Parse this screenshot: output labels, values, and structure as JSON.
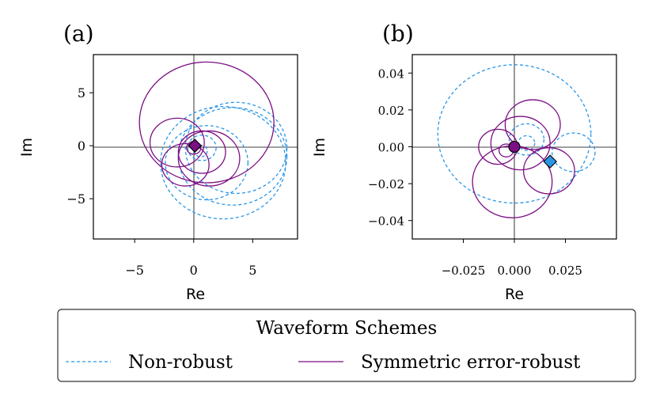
{
  "colors": {
    "non_robust": "#2a96e6",
    "robust": "#7b0f84",
    "axis": "#000000",
    "background": "#ffffff"
  },
  "chart_data": [
    {
      "type": "line",
      "panel_label": "(a)",
      "xlabel": "Re",
      "ylabel": "Im",
      "xlim": [
        -8.5,
        8.8
      ],
      "ylim": [
        -8.8,
        8.6
      ],
      "xticks": [
        -5,
        0,
        5
      ],
      "xtick_labels": [
        "−5",
        "0",
        "5"
      ],
      "yticks": [
        5,
        0,
        -5
      ],
      "ytick_labels": [
        "5",
        "0",
        "−5"
      ],
      "markers": [
        {
          "series": "Non-robust",
          "shape": "diamond",
          "x": 0.1,
          "y": 0.0,
          "color": "#2a96e6"
        },
        {
          "series": "Symmetric error-robust",
          "shape": "diamond",
          "x": 0.1,
          "y": 0.0,
          "color": "#7b0f84"
        }
      ],
      "series": [
        {
          "name": "Non-robust",
          "style": "dashed",
          "curves": [
            {
              "cx": 3.6,
              "cy": -0.2,
              "r": 4.3
            },
            {
              "cx": 3.3,
              "cy": -1.0,
              "r": 4.6
            },
            {
              "cx": 2.5,
              "cy": -1.6,
              "r": 5.3
            },
            {
              "cx": 1.1,
              "cy": -1.6,
              "r": 3.5
            },
            {
              "cx": 0.7,
              "cy": -0.2,
              "r": 1.2
            },
            {
              "cx": 0.6,
              "cy": -0.5,
              "r": 0.55
            }
          ]
        },
        {
          "name": "Symmetric error-robust",
          "style": "solid",
          "curves": [
            {
              "cx": 1.1,
              "cy": 2.2,
              "r": 5.7
            },
            {
              "cx": 1.3,
              "cy": -1.2,
              "r": 2.6
            },
            {
              "cx": 0.7,
              "cy": -0.6,
              "r": 2.0
            },
            {
              "cx": -1.4,
              "cy": 0.3,
              "r": 2.3
            },
            {
              "cx": -0.7,
              "cy": -1.8,
              "r": 2.0
            },
            {
              "cx": 0.0,
              "cy": -0.2,
              "r": 0.6
            }
          ]
        }
      ]
    },
    {
      "type": "line",
      "panel_label": "(b)",
      "xlabel": "Re",
      "ylabel": "Im",
      "xlim": [
        -0.05,
        0.05
      ],
      "ylim": [
        -0.05,
        0.05
      ],
      "xticks": [
        -0.025,
        0.0,
        0.025
      ],
      "xtick_labels": [
        "−0.025",
        "0.000",
        "0.025"
      ],
      "yticks": [
        0.04,
        0.02,
        0.0,
        -0.02,
        -0.04
      ],
      "ytick_labels": [
        "0.04",
        "0.02",
        "0.00",
        "−0.02",
        "−0.04"
      ],
      "markers": [
        {
          "series": "Symmetric error-robust",
          "shape": "circle",
          "x": 0.0,
          "y": 0.0,
          "color": "#7b0f84"
        },
        {
          "series": "Non-robust",
          "shape": "diamond",
          "x": 0.0175,
          "y": -0.008,
          "color": "#2a96e6"
        }
      ],
      "series": [
        {
          "name": "Non-robust",
          "style": "dashed",
          "curves": [
            {
              "cx": 0.0,
              "cy": 0.007,
              "r": 0.0375
            },
            {
              "cx": 0.029,
              "cy": -0.003,
              "r": 0.0105
            },
            {
              "cx": 0.006,
              "cy": 0.004,
              "r": 0.0085
            },
            {
              "cx": 0.006,
              "cy": 0.002,
              "r": 0.004
            }
          ]
        },
        {
          "name": "Symmetric error-robust",
          "style": "solid",
          "curves": [
            {
              "cx": -0.001,
              "cy": -0.019,
              "r": 0.0195
            },
            {
              "cx": 0.009,
              "cy": 0.012,
              "r": 0.0135
            },
            {
              "cx": 0.003,
              "cy": 0.002,
              "r": 0.0145
            },
            {
              "cx": -0.008,
              "cy": 0.0,
              "r": 0.0095
            },
            {
              "cx": 0.017,
              "cy": -0.013,
              "r": 0.0125
            },
            {
              "cx": -0.004,
              "cy": -0.002,
              "r": 0.0035
            }
          ]
        }
      ]
    }
  ],
  "legend": {
    "title": "Waveform Schemes",
    "items": [
      {
        "label": "Non-robust",
        "style": "dashed",
        "series": "Non-robust"
      },
      {
        "label": "Symmetric error-robust",
        "style": "solid",
        "series": "Symmetric error-robust"
      }
    ]
  }
}
